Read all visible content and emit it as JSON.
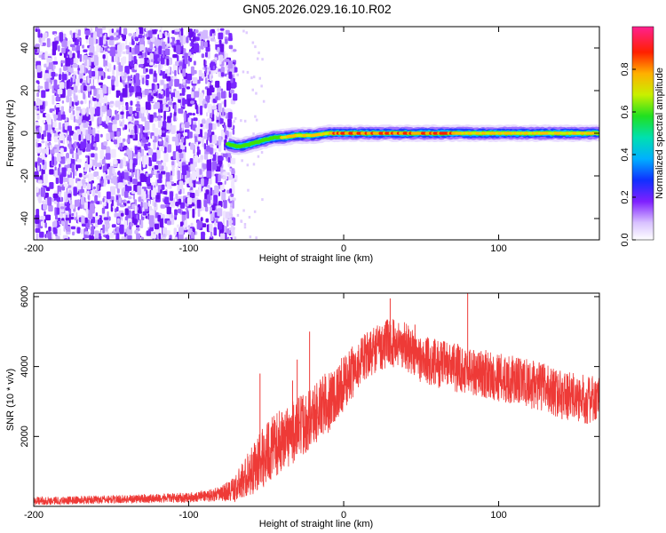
{
  "title": "GN05.2026.029.16.10.R02",
  "chart_data": [
    {
      "type": "heatmap",
      "name": "spectrogram",
      "xlabel": "Height of straight line (km)",
      "ylabel": "Frequency (Hz)",
      "xlim": [
        -200,
        165
      ],
      "ylim": [
        -50,
        50
      ],
      "xticks": [
        -200,
        -100,
        0,
        100
      ],
      "yticks": [
        -40,
        -20,
        0,
        20,
        40
      ],
      "noise_region": {
        "x_from": -200,
        "x_to": -75,
        "level": "low-mid amplitude speckle"
      },
      "signal_track": {
        "x": [
          -75,
          -70,
          -65,
          -60,
          -55,
          -50,
          -45,
          -40,
          -30,
          -20,
          -10,
          0,
          20,
          40,
          60,
          80,
          100,
          120,
          140,
          165
        ],
        "y": [
          -5,
          -6,
          -6,
          -5,
          -4,
          -3,
          -2,
          -2,
          -1,
          -1,
          0,
          0,
          0,
          0,
          0,
          0,
          0,
          0,
          0,
          0
        ],
        "peak_amplitude": [
          0.55,
          0.5,
          0.55,
          0.6,
          0.6,
          0.65,
          0.7,
          0.7,
          0.75,
          0.8,
          0.85,
          0.95,
          0.95,
          0.92,
          0.9,
          0.82,
          0.78,
          0.8,
          0.78,
          0.7
        ]
      },
      "colorbar": {
        "label": "Normalized spectral amplitude",
        "range": [
          0,
          1
        ],
        "ticks": [
          "0.0",
          "0.2",
          "0.4",
          "0.6",
          "0.8"
        ]
      }
    },
    {
      "type": "line",
      "name": "snr",
      "xlabel": "Height of straight line (km)",
      "ylabel": "SNR (10 * v/v)",
      "xlim": [
        -200,
        165
      ],
      "ylim": [
        0,
        6100
      ],
      "xticks": [
        -200,
        -100,
        0,
        100
      ],
      "yticks": [
        2000,
        4000,
        6000
      ],
      "color": "#ee3a37",
      "envelope": {
        "x": [
          -200,
          -150,
          -100,
          -80,
          -70,
          -60,
          -50,
          -40,
          -30,
          -20,
          -10,
          0,
          10,
          20,
          30,
          40,
          50,
          60,
          70,
          80,
          90,
          100,
          110,
          120,
          130,
          140,
          150,
          165
        ],
        "mean": [
          150,
          200,
          250,
          350,
          500,
          1000,
          1500,
          1900,
          2200,
          2600,
          3000,
          3500,
          4100,
          4500,
          4700,
          4600,
          4200,
          4100,
          4000,
          3900,
          3800,
          3700,
          3600,
          3500,
          3400,
          3200,
          3100,
          3000
        ],
        "spread": [
          120,
          120,
          140,
          200,
          400,
          700,
          900,
          900,
          900,
          900,
          900,
          800,
          700,
          700,
          700,
          700,
          700,
          700,
          700,
          700,
          700,
          700,
          700,
          700,
          700,
          700,
          700,
          700
        ]
      },
      "spikes": [
        {
          "x": -54,
          "y": 3800
        },
        {
          "x": -30,
          "y": 4200
        },
        {
          "x": -22,
          "y": 5000
        },
        {
          "x": -33,
          "y": 3600
        },
        {
          "x": 30,
          "y": 5950
        },
        {
          "x": 80,
          "y": 6100
        },
        {
          "x": 46,
          "y": 5200
        }
      ]
    }
  ]
}
